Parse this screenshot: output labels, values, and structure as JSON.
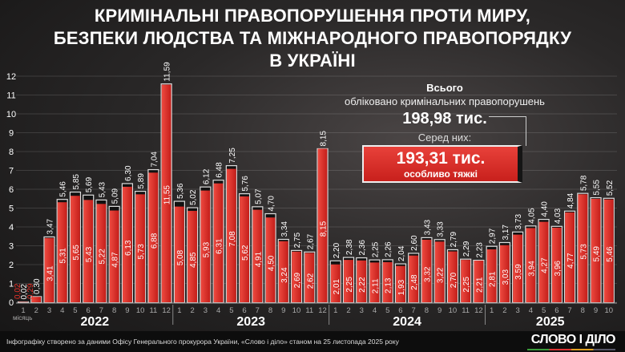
{
  "title": {
    "line1": "КРИМІНАЛЬНІ ПРАВОПОРУШЕННЯ ПРОТИ МИРУ,",
    "line2": "БЕЗПЕКИ ЛЮДСТВА ТА МІЖНАРОДНОГО ПРАВОПОРЯДКУ",
    "line3": "В УКРАЇНІ"
  },
  "summary": {
    "label1": "Всього",
    "label2": "обліковано кримінальних правопорушень",
    "total": "198,98 тис.",
    "among": "Серед них:",
    "grave_total": "193,31 тис.",
    "grave_label": "особливо тяжкі"
  },
  "colors": {
    "bar_fill": "#d9261f",
    "bar_outline": "#e6e6e6",
    "background": "#2a2828"
  },
  "chart_data": {
    "type": "bar",
    "stacked_overlay": true,
    "xlabel": "місяць",
    "ylim": [
      0,
      12
    ],
    "yticks": [
      0,
      1,
      2,
      3,
      4,
      5,
      6,
      7,
      8,
      9,
      10,
      11,
      12
    ],
    "grid": true,
    "years": [
      {
        "year": "2022",
        "months": [
          "1",
          "2",
          "3",
          "4",
          "5",
          "6",
          "7",
          "8",
          "9",
          "10",
          "11",
          "12"
        ]
      },
      {
        "year": "2023",
        "months": [
          "1",
          "2",
          "3",
          "4",
          "5",
          "6",
          "7",
          "8",
          "9",
          "10",
          "11",
          "12"
        ]
      },
      {
        "year": "2024",
        "months": [
          "1",
          "2",
          "3",
          "4",
          "5",
          "6",
          "7",
          "8",
          "9",
          "10",
          "11",
          "12"
        ]
      },
      {
        "year": "2025",
        "months": [
          "1",
          "2",
          "3",
          "4",
          "5",
          "6",
          "7",
          "8",
          "9",
          "10"
        ]
      }
    ],
    "series": [
      {
        "name": "Всього",
        "values": [
          0.02,
          0.3,
          3.47,
          5.46,
          5.85,
          5.69,
          5.43,
          5.09,
          6.3,
          5.89,
          7.04,
          11.59,
          5.36,
          5.02,
          6.12,
          6.48,
          7.25,
          5.76,
          5.07,
          4.7,
          3.34,
          2.75,
          2.67,
          8.15,
          2.2,
          2.38,
          2.36,
          2.25,
          2.26,
          2.04,
          2.6,
          3.43,
          3.33,
          2.79,
          2.29,
          2.23,
          2.97,
          3.17,
          3.73,
          4.05,
          4.4,
          4.03,
          4.84,
          5.78,
          5.55,
          5.52
        ]
      },
      {
        "name": "особливо тяжкі",
        "values": [
          0.02,
          0.29,
          3.41,
          5.31,
          5.65,
          5.43,
          5.22,
          4.87,
          6.13,
          5.73,
          6.88,
          11.55,
          5.08,
          4.85,
          5.93,
          6.31,
          7.08,
          5.62,
          4.91,
          4.5,
          3.24,
          2.69,
          2.62,
          8.15,
          2.01,
          2.25,
          2.22,
          2.11,
          2.13,
          1.93,
          2.48,
          3.32,
          3.22,
          2.7,
          2.25,
          2.21,
          2.81,
          3.03,
          3.59,
          3.94,
          4.27,
          3.96,
          4.77,
          5.73,
          5.49,
          5.46
        ]
      }
    ]
  },
  "footer": {
    "source": "Інфографіку створено за даними Офісу Генерального прокурора України, «Слово і діло» станом на 25 листопада 2025 року",
    "logo": "СЛОВО І ДІЛО"
  }
}
